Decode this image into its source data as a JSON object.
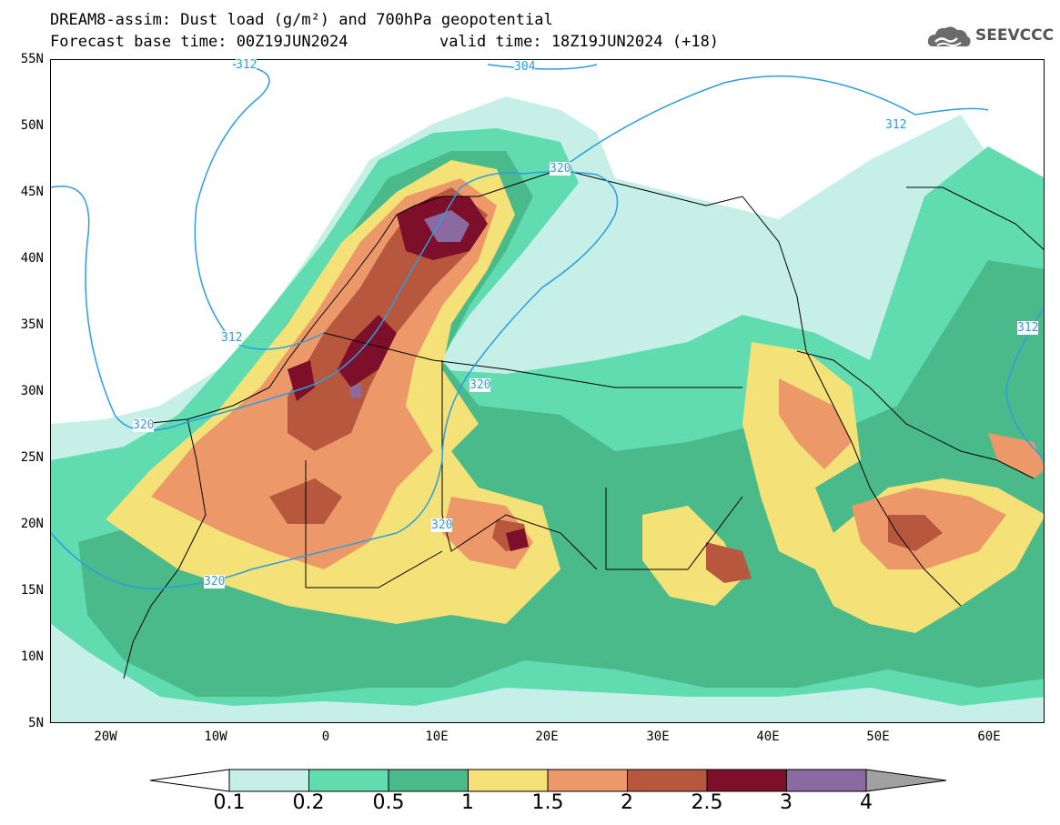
{
  "title": {
    "line1": "DREAM8-assim: Dust load (g/m²) and 700hPa geopotential",
    "line2_base": "Forecast base time: 00Z19JUN2024",
    "line2_valid": "valid time: 18Z19JUN2024 (+18)"
  },
  "logo": {
    "text": "SEEVCCC",
    "icon": "cloud-icon"
  },
  "axes": {
    "lat_labels": [
      "55N",
      "50N",
      "45N",
      "40N",
      "35N",
      "30N",
      "25N",
      "20N",
      "15N",
      "10N",
      "5N"
    ],
    "lon_labels": [
      "20W",
      "10W",
      "0",
      "10E",
      "20E",
      "30E",
      "40E",
      "50E",
      "60E"
    ],
    "lon_range": [
      -25,
      65
    ],
    "lat_range": [
      5,
      55
    ]
  },
  "contour_labels": [
    "312",
    "304",
    "312",
    "320",
    "312",
    "320",
    "320",
    "312",
    "320",
    "320"
  ],
  "colorbar": {
    "labels": [
      "0.1",
      "0.2",
      "0.5",
      "1",
      "1.5",
      "2",
      "2.5",
      "3",
      "4"
    ],
    "colors": [
      "#c6efe7",
      "#60dcb0",
      "#4bba8a",
      "#f4e178",
      "#ec9868",
      "#b6573e",
      "#7e0f2a",
      "#8b6aa2",
      "#a0a0a0"
    ],
    "under_color": "#ffffff"
  },
  "dust_colors": {
    "c1": "#c6efe7",
    "c2": "#60dcb0",
    "c3": "#4bba8a",
    "c4": "#f4e178",
    "c5": "#ec9868",
    "c6": "#b6573e",
    "c7": "#7e0f2a",
    "c8": "#8b6aa2"
  },
  "geopotential_color": "#2a9ee0"
}
